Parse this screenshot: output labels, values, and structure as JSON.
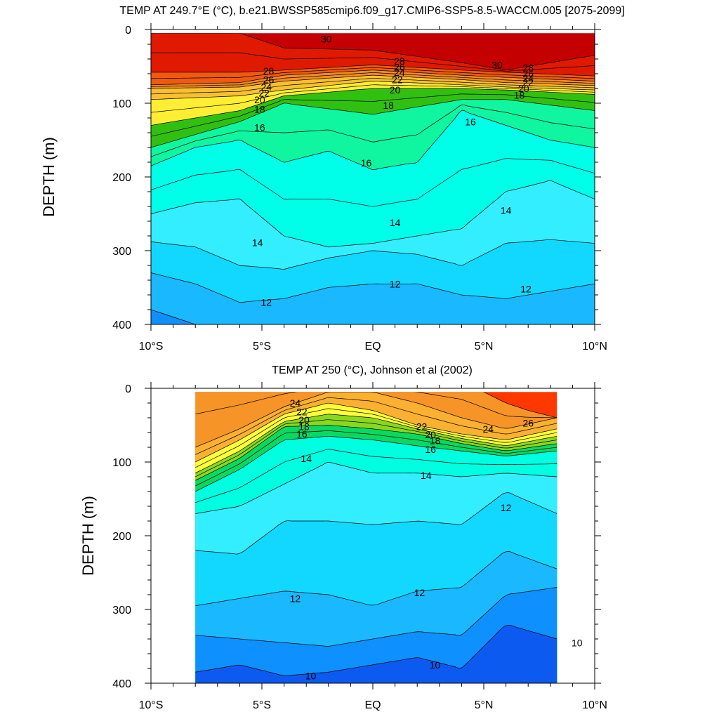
{
  "chart_data": [
    {
      "type": "contour",
      "title": "TEMP AT 249.7°E (°C), b.e21.BWSSP585cmip6.f09_g17.CMIP6-SSP5-8.5-WACCM.005 [2075-2099]",
      "ylabel": "DEPTH (m)",
      "xlabel": "",
      "xlim": [
        -10,
        10
      ],
      "ylim": [
        400,
        0
      ],
      "x_data_range": [
        -10,
        10
      ],
      "xticks": [
        {
          "value": -10,
          "label": "10°S"
        },
        {
          "value": -5,
          "label": "5°S"
        },
        {
          "value": 0,
          "label": "EQ"
        },
        {
          "value": 5,
          "label": "5°N"
        },
        {
          "value": 10,
          "label": "10°N"
        }
      ],
      "yticks": [
        0,
        100,
        200,
        300,
        400
      ],
      "color_bins": [
        {
          "min": 30,
          "color": "#c40000"
        },
        {
          "min": 28,
          "color": "#e01a00"
        },
        {
          "min": 26,
          "color": "#ef5a10"
        },
        {
          "min": 24,
          "color": "#f38b22"
        },
        {
          "min": 22,
          "color": "#f8c030"
        },
        {
          "min": 20,
          "color": "#ffee33"
        },
        {
          "min": 18,
          "color": "#31c012"
        },
        {
          "min": 16,
          "color": "#10f5a0"
        },
        {
          "min": 14,
          "color": "#00ffe8"
        },
        {
          "min": 13,
          "color": "#33eeff"
        },
        {
          "min": 12,
          "color": "#12d8ff"
        },
        {
          "min": 11,
          "color": "#1ab8ff"
        },
        {
          "min": 10,
          "color": "#0e90ff"
        },
        {
          "min": -99,
          "color": "#0c5af0"
        }
      ],
      "isotherms": [
        {
          "t": 30,
          "x": [
            -10,
            -6,
            -4,
            0,
            4,
            6,
            10
          ],
          "depth": [
            5,
            5,
            25,
            28,
            45,
            55,
            35
          ]
        },
        {
          "t": 28,
          "x": [
            -10,
            -6,
            -4,
            0,
            4,
            6,
            10
          ],
          "depth": [
            58,
            58,
            55,
            48,
            55,
            58,
            63
          ]
        },
        {
          "t": 26,
          "x": [
            -10,
            -6,
            -4,
            0,
            4,
            6,
            10
          ],
          "depth": [
            75,
            72,
            62,
            55,
            62,
            65,
            70
          ]
        },
        {
          "t": 24,
          "x": [
            -10,
            -6,
            -4,
            0,
            4,
            6,
            10
          ],
          "depth": [
            80,
            78,
            70,
            62,
            68,
            72,
            76
          ]
        },
        {
          "t": 22,
          "x": [
            -10,
            -6,
            -4,
            0,
            4,
            6,
            10
          ],
          "depth": [
            95,
            90,
            82,
            70,
            75,
            78,
            82
          ]
        },
        {
          "t": 20,
          "x": [
            -10,
            -6,
            -4,
            0,
            4,
            6,
            10
          ],
          "depth": [
            130,
            110,
            90,
            80,
            80,
            82,
            88
          ]
        },
        {
          "t": 18,
          "x": [
            -10,
            -6,
            -4,
            0,
            4,
            6,
            10
          ],
          "depth": [
            160,
            125,
            100,
            115,
            95,
            95,
            110
          ]
        },
        {
          "t": 16,
          "x": [
            -10,
            -8,
            -6,
            -4,
            -2,
            0,
            2,
            4,
            6,
            8,
            10
          ],
          "depth": [
            185,
            160,
            150,
            180,
            165,
            190,
            180,
            110,
            130,
            150,
            160
          ]
        },
        {
          "t": 14,
          "x": [
            -10,
            -8,
            -6,
            -4,
            -2,
            0,
            2,
            4,
            6,
            8,
            10
          ],
          "depth": [
            250,
            235,
            230,
            280,
            295,
            290,
            280,
            270,
            220,
            205,
            230
          ]
        },
        {
          "t": 13,
          "x": [
            -10,
            -8,
            -6,
            -4,
            -2,
            0,
            2,
            4,
            6,
            8,
            10
          ],
          "depth": [
            288,
            295,
            320,
            325,
            310,
            300,
            305,
            320,
            290,
            285,
            290
          ]
        },
        {
          "t": 12,
          "x": [
            -10,
            -8,
            -6,
            -4,
            -2,
            0,
            2,
            4,
            6,
            8,
            10
          ],
          "depth": [
            330,
            345,
            370,
            365,
            350,
            345,
            345,
            360,
            365,
            355,
            345
          ]
        },
        {
          "t": 11,
          "x": [
            -10,
            -8,
            -6,
            -4,
            -2,
            0,
            2,
            4,
            6,
            8,
            10
          ],
          "depth": [
            380,
            400,
            410,
            410,
            405,
            400,
            410,
            415,
            410,
            405,
            400
          ]
        }
      ],
      "contour_labels": [
        {
          "text": "30",
          "x": -2.1,
          "depth": 13
        },
        {
          "text": "30",
          "x": 5.6,
          "depth": 48
        },
        {
          "text": "28",
          "x": -4.7,
          "depth": 56
        },
        {
          "text": "26",
          "x": -4.7,
          "depth": 68
        },
        {
          "text": "24",
          "x": -4.8,
          "depth": 78
        },
        {
          "text": "22",
          "x": -4.9,
          "depth": 86
        },
        {
          "text": "20",
          "x": -5.1,
          "depth": 95
        },
        {
          "text": "18",
          "x": -5.1,
          "depth": 108
        },
        {
          "text": "28",
          "x": 1.2,
          "depth": 43
        },
        {
          "text": "26",
          "x": 1.2,
          "depth": 51
        },
        {
          "text": "24",
          "x": 1.2,
          "depth": 58
        },
        {
          "text": "22",
          "x": 1.1,
          "depth": 68
        },
        {
          "text": "20",
          "x": 1.0,
          "depth": 82
        },
        {
          "text": "18",
          "x": 0.7,
          "depth": 103
        },
        {
          "text": "28",
          "x": 7.0,
          "depth": 52
        },
        {
          "text": "26",
          "x": 7.0,
          "depth": 60
        },
        {
          "text": "24",
          "x": 7.0,
          "depth": 66
        },
        {
          "text": "22",
          "x": 7.0,
          "depth": 72
        },
        {
          "text": "20",
          "x": 6.8,
          "depth": 80
        },
        {
          "text": "18",
          "x": 6.6,
          "depth": 89
        },
        {
          "text": "16",
          "x": -5.1,
          "depth": 133
        },
        {
          "text": "16",
          "x": 4.4,
          "depth": 125
        },
        {
          "text": "16",
          "x": -0.3,
          "depth": 181
        },
        {
          "text": "14",
          "x": 6.0,
          "depth": 245
        },
        {
          "text": "14",
          "x": 1.0,
          "depth": 262
        },
        {
          "text": "14",
          "x": -5.2,
          "depth": 289
        },
        {
          "text": "12",
          "x": 1.0,
          "depth": 345
        },
        {
          "text": "12",
          "x": 6.9,
          "depth": 352
        },
        {
          "text": "12",
          "x": -4.8,
          "depth": 370
        }
      ]
    },
    {
      "type": "contour",
      "title": "TEMP AT 250 (°C), Johnson et al (2002)",
      "ylabel": "DEPTH (m)",
      "xlabel": "",
      "xlim": [
        -10,
        10
      ],
      "ylim": [
        400,
        0
      ],
      "x_data_range": [
        -8,
        8.3
      ],
      "xticks": [
        {
          "value": -10,
          "label": "10°S"
        },
        {
          "value": -5,
          "label": "5°S"
        },
        {
          "value": 0,
          "label": "EQ"
        },
        {
          "value": 5,
          "label": "5°N"
        },
        {
          "value": 10,
          "label": "10°N"
        }
      ],
      "yticks": [
        0,
        100,
        200,
        300,
        400
      ],
      "color_bins": [
        {
          "min": 26,
          "color": "#ff3800"
        },
        {
          "min": 24,
          "color": "#f79428"
        },
        {
          "min": 22,
          "color": "#fbb031"
        },
        {
          "min": 20,
          "color": "#ffff3a"
        },
        {
          "min": 18,
          "color": "#89d81f"
        },
        {
          "min": 16,
          "color": "#0bd860"
        },
        {
          "min": 14,
          "color": "#00ffe0"
        },
        {
          "min": 13,
          "color": "#33eeff"
        },
        {
          "min": 12,
          "color": "#12d8ff"
        },
        {
          "min": 11,
          "color": "#1ab8ff"
        },
        {
          "min": 10,
          "color": "#0e90ff"
        },
        {
          "min": -99,
          "color": "#0c5af0"
        }
      ],
      "isotherms": [
        {
          "t": 26,
          "x": [
            -8,
            4,
            5,
            6,
            7,
            8.3
          ],
          "depth": [
            -10,
            -10,
            5,
            20,
            30,
            40
          ]
        },
        {
          "t": 24,
          "x": [
            -8,
            -6,
            -4,
            -2,
            0,
            2,
            4,
            6,
            8.3
          ],
          "depth": [
            80,
            55,
            25,
            5,
            5,
            20,
            40,
            55,
            40
          ]
        },
        {
          "t": 22,
          "x": [
            -8,
            -6,
            -4,
            -2,
            0,
            2,
            4,
            6,
            8.3
          ],
          "depth": [
            100,
            70,
            35,
            20,
            30,
            50,
            62,
            70,
            55
          ]
        },
        {
          "t": 20,
          "x": [
            -8,
            -6,
            -4,
            -2,
            0,
            2,
            4,
            6,
            8.3
          ],
          "depth": [
            115,
            85,
            45,
            35,
            40,
            55,
            68,
            78,
            65
          ]
        },
        {
          "t": 18,
          "x": [
            -8,
            -6,
            -4,
            -2,
            0,
            2,
            4,
            6,
            8.3
          ],
          "depth": [
            125,
            95,
            52,
            50,
            55,
            62,
            75,
            85,
            75
          ]
        },
        {
          "t": 16,
          "x": [
            -8,
            -6,
            -4,
            -2,
            0,
            2,
            4,
            6,
            8.3
          ],
          "depth": [
            140,
            110,
            70,
            65,
            70,
            78,
            85,
            92,
            85
          ]
        },
        {
          "t": 14,
          "x": [
            -8,
            -6,
            -4,
            -2,
            0,
            2,
            4,
            6,
            8.3
          ],
          "depth": [
            170,
            160,
            130,
            100,
            115,
            115,
            120,
            115,
            120
          ]
        },
        {
          "t": 13,
          "x": [
            -8,
            -6,
            -4,
            -2,
            0,
            2,
            4,
            6,
            8.3
          ],
          "depth": [
            220,
            225,
            180,
            180,
            185,
            180,
            185,
            140,
            170
          ]
        },
        {
          "t": 12,
          "x": [
            -8,
            -6,
            -4,
            -2,
            0,
            2,
            4,
            6,
            8.3
          ],
          "depth": [
            295,
            285,
            275,
            280,
            295,
            275,
            270,
            220,
            245
          ]
        },
        {
          "t": 11,
          "x": [
            -8,
            -6,
            -4,
            -2,
            0,
            2,
            4,
            6,
            8.3
          ],
          "depth": [
            335,
            340,
            345,
            350,
            340,
            330,
            335,
            280,
            270
          ]
        },
        {
          "t": 10,
          "x": [
            -8,
            -6,
            -4,
            -2,
            0,
            2,
            4,
            6,
            8.3
          ],
          "depth": [
            385,
            375,
            390,
            385,
            375,
            365,
            380,
            320,
            340
          ]
        }
      ],
      "contour_labels": [
        {
          "text": "24",
          "x": -3.5,
          "depth": 20
        },
        {
          "text": "22",
          "x": -3.2,
          "depth": 32
        },
        {
          "text": "20",
          "x": -3.1,
          "depth": 43
        },
        {
          "text": "18",
          "x": -3.1,
          "depth": 52
        },
        {
          "text": "16",
          "x": -3.2,
          "depth": 62
        },
        {
          "text": "22",
          "x": 2.2,
          "depth": 52
        },
        {
          "text": "20",
          "x": 2.6,
          "depth": 63
        },
        {
          "text": "18",
          "x": 2.8,
          "depth": 71
        },
        {
          "text": "16",
          "x": 2.6,
          "depth": 83
        },
        {
          "text": "24",
          "x": 5.2,
          "depth": 55
        },
        {
          "text": "26",
          "x": 7.0,
          "depth": 47
        },
        {
          "text": "14",
          "x": -3.0,
          "depth": 95
        },
        {
          "text": "14",
          "x": 2.4,
          "depth": 118
        },
        {
          "text": "12",
          "x": 6.0,
          "depth": 162
        },
        {
          "text": "12",
          "x": -3.5,
          "depth": 285
        },
        {
          "text": "12",
          "x": 2.1,
          "depth": 277
        },
        {
          "text": "10",
          "x": 9.2,
          "depth": 345
        },
        {
          "text": "10",
          "x": -2.8,
          "depth": 390
        },
        {
          "text": "10",
          "x": 2.8,
          "depth": 375
        }
      ]
    }
  ]
}
